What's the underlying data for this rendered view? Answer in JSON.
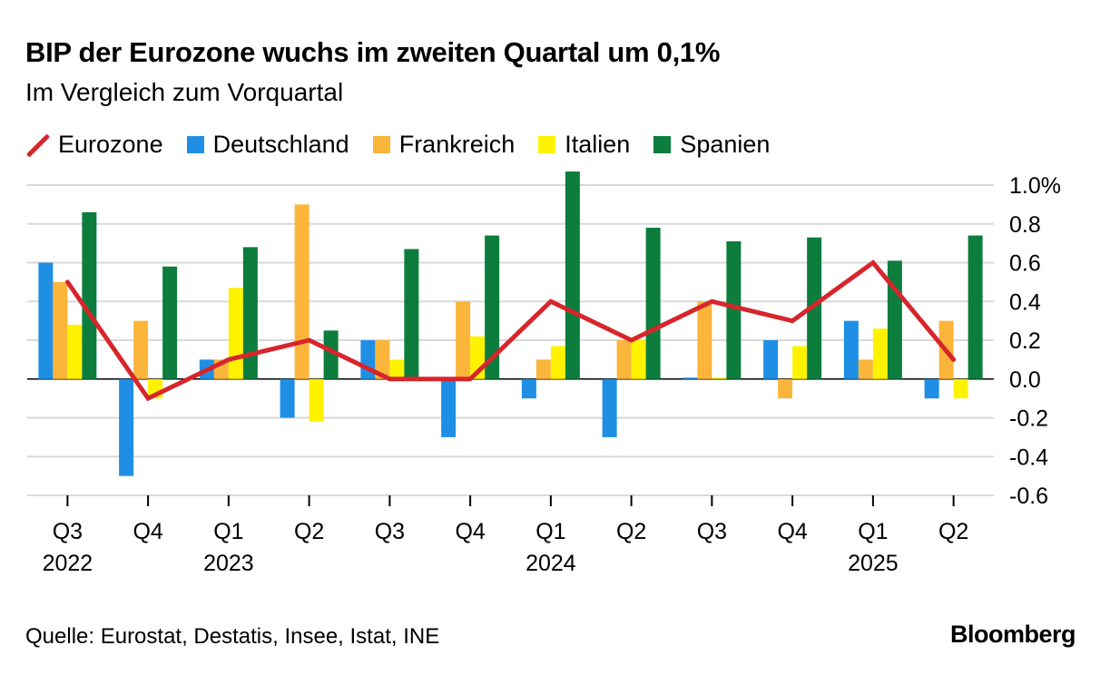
{
  "header": {
    "title": "BIP der Eurozone wuchs im zweiten Quartal um 0,1%",
    "subtitle": "Im Vergleich zum Vorquartal"
  },
  "legend": {
    "eurozone": "Eurozone",
    "deutschland": "Deutschland",
    "frankreich": "Frankreich",
    "italien": "Italien",
    "spanien": "Spanien"
  },
  "colors": {
    "eurozone": "#d7252c",
    "deutschland": "#1f8fe5",
    "frankreich": "#fbb53a",
    "italien": "#fff200",
    "spanien": "#0c7d3c",
    "grid": "#d9d9d9",
    "zero": "#000000"
  },
  "footer": {
    "source": "Quelle: Eurostat, Destatis, Insee, Istat, INE",
    "brand": "Bloomberg"
  },
  "chart_data": {
    "type": "bar",
    "categories": [
      "Q3",
      "Q4",
      "Q1",
      "Q2",
      "Q3",
      "Q4",
      "Q1",
      "Q2",
      "Q3",
      "Q4",
      "Q1",
      "Q2"
    ],
    "years": [
      "2022",
      "",
      "2023",
      "",
      "",
      "",
      "2024",
      "",
      "",
      "",
      "2025",
      ""
    ],
    "series": [
      {
        "name": "Deutschland",
        "type": "bar",
        "values": [
          0.6,
          -0.5,
          0.1,
          -0.2,
          0.2,
          -0.3,
          -0.1,
          -0.3,
          0.0,
          0.2,
          0.3,
          -0.1
        ]
      },
      {
        "name": "Frankreich",
        "type": "bar",
        "values": [
          0.5,
          0.3,
          0.1,
          0.9,
          0.2,
          0.4,
          0.1,
          0.2,
          0.4,
          -0.1,
          0.1,
          0.3
        ]
      },
      {
        "name": "Italien",
        "type": "bar",
        "values": [
          0.28,
          -0.1,
          0.47,
          -0.22,
          0.1,
          0.22,
          0.17,
          0.2,
          0.0,
          0.17,
          0.26,
          -0.1
        ]
      },
      {
        "name": "Spanien",
        "type": "bar",
        "values": [
          0.86,
          0.58,
          0.68,
          0.25,
          0.67,
          0.74,
          1.07,
          0.78,
          0.71,
          0.73,
          0.61,
          0.74
        ]
      },
      {
        "name": "Eurozone",
        "type": "line",
        "values": [
          0.5,
          -0.1,
          0.1,
          0.2,
          0.0,
          0.0,
          0.4,
          0.2,
          0.4,
          0.3,
          0.6,
          0.1
        ]
      }
    ],
    "yticks": [
      "1.0%",
      "0.8",
      "0.6",
      "0.4",
      "0.2",
      "0.0",
      "-0.2",
      "-0.4",
      "-0.6"
    ],
    "ytick_values": [
      1.0,
      0.8,
      0.6,
      0.4,
      0.2,
      0.0,
      -0.2,
      -0.4,
      -0.6
    ],
    "ylim": [
      -0.6,
      1.0
    ],
    "grid": true,
    "legend_position": "top-left"
  }
}
